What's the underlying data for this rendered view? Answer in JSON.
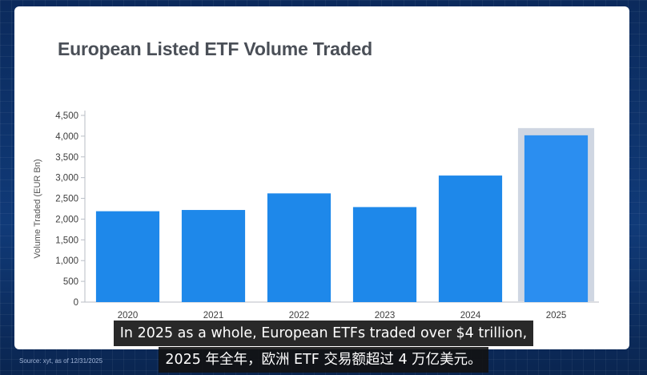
{
  "chart_data": {
    "type": "bar",
    "title": "European Listed ETF Volume Traded",
    "xlabel": "",
    "ylabel": "Volume Traded (EUR Bn)",
    "ylim": [
      0,
      4500
    ],
    "yticks": [
      "0",
      "500",
      "1,000",
      "1,500",
      "2,000",
      "2,500",
      "3,000",
      "3,500",
      "4,000",
      "4,500"
    ],
    "ytick_values": [
      0,
      500,
      1000,
      1500,
      2000,
      2500,
      3000,
      3500,
      4000,
      4500
    ],
    "categories": [
      "2020",
      "2021",
      "2022",
      "2023",
      "2024",
      "2025"
    ],
    "values": [
      2190,
      2220,
      2620,
      2290,
      3050,
      4020
    ],
    "highlighted_category": "2025",
    "grid": false,
    "colors": {
      "bar": "#1e88ea",
      "highlight_bar": "#2b8ef0",
      "highlight_frame": "#cfd6e2",
      "axis": "#b9bec6",
      "tick_text": "#3d3d3d"
    }
  },
  "source_note": "Source: xyt, as of 12/31/2025",
  "subtitles": {
    "english": "In 2025 as a whole, European ETFs traded over $4 trillion,",
    "chinese": "2025 年全年，欧洲 ETF 交易额超过 4 万亿美元。"
  }
}
